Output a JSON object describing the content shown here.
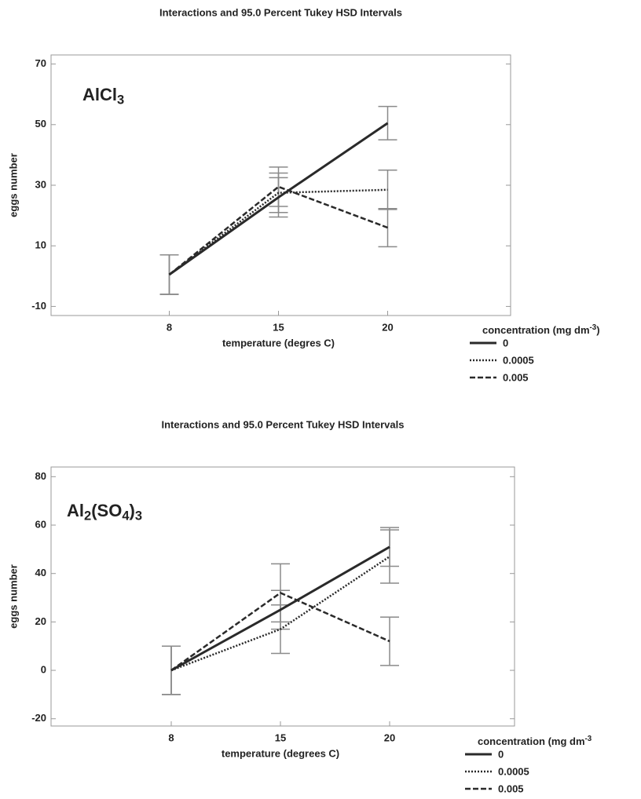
{
  "chart_data": [
    {
      "type": "line",
      "title": "Interactions and 95.0 Percent Tukey HSD Intervals",
      "annotation": [
        {
          "text": "AlCl"
        },
        {
          "text": "3",
          "sub": true
        }
      ],
      "x_label": "temperature (degres C)",
      "y_label": "eggs number",
      "categories": [
        "8",
        "15",
        "20"
      ],
      "ylim": [
        -13,
        73
      ],
      "yticks": [
        -10,
        10,
        30,
        50,
        70
      ],
      "legend_title": [
        {
          "text": "concentration (mg dm"
        },
        {
          "text": "-3",
          "sup": true
        },
        {
          "text": ")"
        }
      ],
      "legend": "bottom-right",
      "error_color": "#8a8a8a",
      "series": [
        {
          "name": "0",
          "color": "#2a2a2a",
          "style": "solid",
          "values": [
            0.5,
            26,
            50.5
          ],
          "errors": [
            6.5,
            6.5,
            5.5
          ]
        },
        {
          "name": "0.0005",
          "color": "#2a2a2a",
          "style": "dotted",
          "values": [
            0.5,
            27.5,
            28.5
          ],
          "errors": [
            6.5,
            6.5,
            6.5
          ]
        },
        {
          "name": "0.005",
          "color": "#2a2a2a",
          "style": "dashed",
          "values": [
            0.5,
            29.5,
            16
          ],
          "errors": [
            6.5,
            6.5,
            6.3
          ]
        }
      ]
    },
    {
      "type": "line",
      "title": "Interactions and 95.0 Percent Tukey HSD Intervals",
      "annotation": [
        {
          "text": "Al"
        },
        {
          "text": "2",
          "sub": true
        },
        {
          "text": "(SO"
        },
        {
          "text": "4",
          "sub": true
        },
        {
          "text": ")"
        },
        {
          "text": "3",
          "sub": true
        }
      ],
      "x_label": "temperature (degrees C)",
      "y_label": "eggs number",
      "categories": [
        "8",
        "15",
        "20"
      ],
      "ylim": [
        -23,
        84
      ],
      "yticks": [
        -20,
        0,
        20,
        40,
        60,
        80
      ],
      "legend_title": [
        {
          "text": "concentration (mg dm"
        },
        {
          "text": "-3",
          "sup": true
        }
      ],
      "legend": "bottom-right",
      "error_color": "#8a8a8a",
      "series": [
        {
          "name": "0",
          "color": "#2a2a2a",
          "style": "solid",
          "values": [
            0,
            25,
            51
          ],
          "errors": [
            10,
            8,
            8
          ]
        },
        {
          "name": "0.0005",
          "color": "#2a2a2a",
          "style": "dotted",
          "values": [
            0,
            17,
            47
          ],
          "errors": [
            10,
            10,
            11
          ]
        },
        {
          "name": "0.005",
          "color": "#2a2a2a",
          "style": "dashed",
          "values": [
            0,
            32,
            12
          ],
          "errors": [
            10,
            12,
            10
          ]
        }
      ]
    }
  ]
}
